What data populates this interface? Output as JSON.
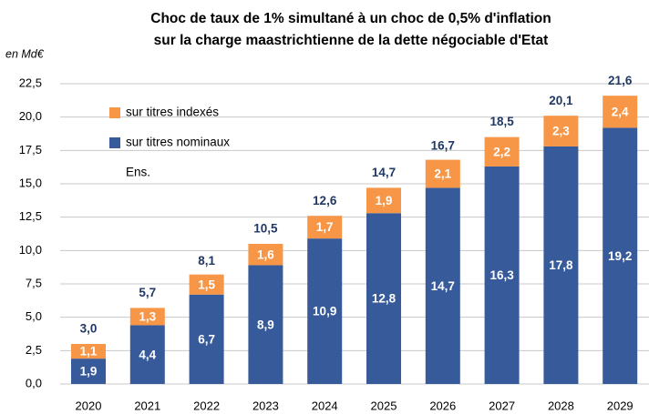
{
  "chart_data": {
    "type": "stacked_bar",
    "title": [
      "Choc de taux  de 1% simultané à un choc de 0,5% d'inflation",
      "sur la charge maastrichtienne  de la dette négociable d'Etat"
    ],
    "y_unit": "en Md€",
    "categories": [
      "2020",
      "2021",
      "2022",
      "2023",
      "2024",
      "2025",
      "2026",
      "2027",
      "2028",
      "2029"
    ],
    "series": [
      {
        "name": "sur titres nominaux",
        "color": "#375a9a",
        "values": [
          1.9,
          4.4,
          6.7,
          8.9,
          10.9,
          12.8,
          14.7,
          16.3,
          17.8,
          19.2
        ],
        "value_labels": [
          "1,9",
          "4,4",
          "6,7",
          "8,9",
          "10,9",
          "12,8",
          "14,7",
          "16,3",
          "17,8",
          "19,2"
        ]
      },
      {
        "name": "sur titres indexés",
        "color": "#f79646",
        "values": [
          1.1,
          1.3,
          1.5,
          1.6,
          1.7,
          1.9,
          2.1,
          2.2,
          2.3,
          2.4
        ],
        "value_labels": [
          "1,1",
          "1,3",
          "1,5",
          "1,6",
          "1,7",
          "1,9",
          "2,1",
          "2,2",
          "2,3",
          "2,4"
        ]
      }
    ],
    "totals": {
      "name": "Ens.",
      "values": [
        3.0,
        5.7,
        8.1,
        10.5,
        12.6,
        14.7,
        16.7,
        18.5,
        20.1,
        21.6
      ],
      "value_labels": [
        "3,0",
        "5,7",
        "8,1",
        "10,5",
        "12,6",
        "14,7",
        "16,7",
        "18,5",
        "20,1",
        "21,6"
      ]
    },
    "ylim": [
      0,
      22.5
    ],
    "yticks": [
      {
        "value": 0,
        "label": "0,0"
      },
      {
        "value": 2.5,
        "label": "2,5"
      },
      {
        "value": 5,
        "label": "5,0"
      },
      {
        "value": 7.5,
        "label": "7,5"
      },
      {
        "value": 10,
        "label": "10,0"
      },
      {
        "value": 12.5,
        "label": "12,5"
      },
      {
        "value": 15,
        "label": "15,0"
      },
      {
        "value": 17.5,
        "label": "17,5"
      },
      {
        "value": 20,
        "label": "20,0"
      },
      {
        "value": 22.5,
        "label": "22,5"
      }
    ],
    "grid": true
  }
}
